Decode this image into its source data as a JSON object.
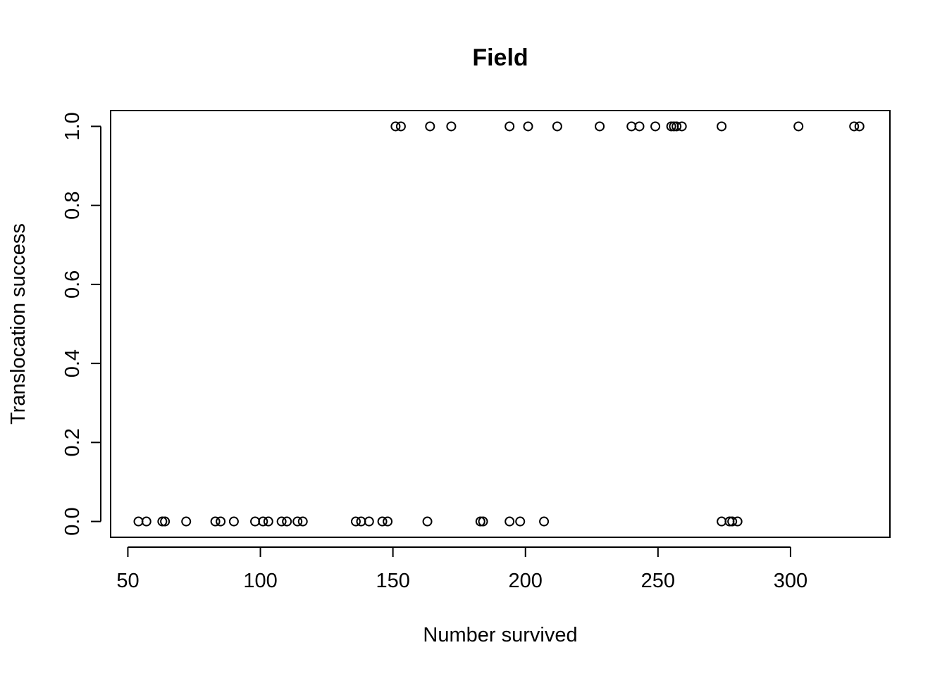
{
  "chart_data": {
    "type": "scatter",
    "title": "Field",
    "xlabel": "Number survived",
    "ylabel": "Translocation success",
    "xlim": [
      43.5,
      337.5
    ],
    "ylim": [
      -0.04,
      1.04
    ],
    "xticks": [
      50,
      100,
      150,
      200,
      250,
      300
    ],
    "yticks": [
      0.0,
      0.2,
      0.4,
      0.6,
      0.8,
      1.0
    ],
    "xtick_labels": [
      "50",
      "100",
      "150",
      "200",
      "250",
      "300"
    ],
    "ytick_labels": [
      "0.0",
      "0.2",
      "0.4",
      "0.6",
      "0.8",
      "1.0"
    ],
    "marker": "open-circle",
    "grid": false,
    "points": [
      {
        "x": 54,
        "y": 0
      },
      {
        "x": 57,
        "y": 0
      },
      {
        "x": 63,
        "y": 0
      },
      {
        "x": 64,
        "y": 0
      },
      {
        "x": 72,
        "y": 0
      },
      {
        "x": 83,
        "y": 0
      },
      {
        "x": 85,
        "y": 0
      },
      {
        "x": 90,
        "y": 0
      },
      {
        "x": 98,
        "y": 0
      },
      {
        "x": 101,
        "y": 0
      },
      {
        "x": 103,
        "y": 0
      },
      {
        "x": 108,
        "y": 0
      },
      {
        "x": 110,
        "y": 0
      },
      {
        "x": 114,
        "y": 0
      },
      {
        "x": 116,
        "y": 0
      },
      {
        "x": 136,
        "y": 0
      },
      {
        "x": 138,
        "y": 0
      },
      {
        "x": 141,
        "y": 0
      },
      {
        "x": 146,
        "y": 0
      },
      {
        "x": 148,
        "y": 0
      },
      {
        "x": 163,
        "y": 0
      },
      {
        "x": 183,
        "y": 0
      },
      {
        "x": 184,
        "y": 0
      },
      {
        "x": 194,
        "y": 0
      },
      {
        "x": 198,
        "y": 0
      },
      {
        "x": 207,
        "y": 0
      },
      {
        "x": 274,
        "y": 0
      },
      {
        "x": 277,
        "y": 0
      },
      {
        "x": 278,
        "y": 0
      },
      {
        "x": 280,
        "y": 0
      },
      {
        "x": 151,
        "y": 1
      },
      {
        "x": 153,
        "y": 1
      },
      {
        "x": 164,
        "y": 1
      },
      {
        "x": 172,
        "y": 1
      },
      {
        "x": 194,
        "y": 1
      },
      {
        "x": 201,
        "y": 1
      },
      {
        "x": 212,
        "y": 1
      },
      {
        "x": 228,
        "y": 1
      },
      {
        "x": 240,
        "y": 1
      },
      {
        "x": 243,
        "y": 1
      },
      {
        "x": 249,
        "y": 1
      },
      {
        "x": 255,
        "y": 1
      },
      {
        "x": 256,
        "y": 1
      },
      {
        "x": 257,
        "y": 1
      },
      {
        "x": 259,
        "y": 1
      },
      {
        "x": 274,
        "y": 1
      },
      {
        "x": 303,
        "y": 1
      },
      {
        "x": 324,
        "y": 1
      },
      {
        "x": 326,
        "y": 1
      }
    ]
  }
}
